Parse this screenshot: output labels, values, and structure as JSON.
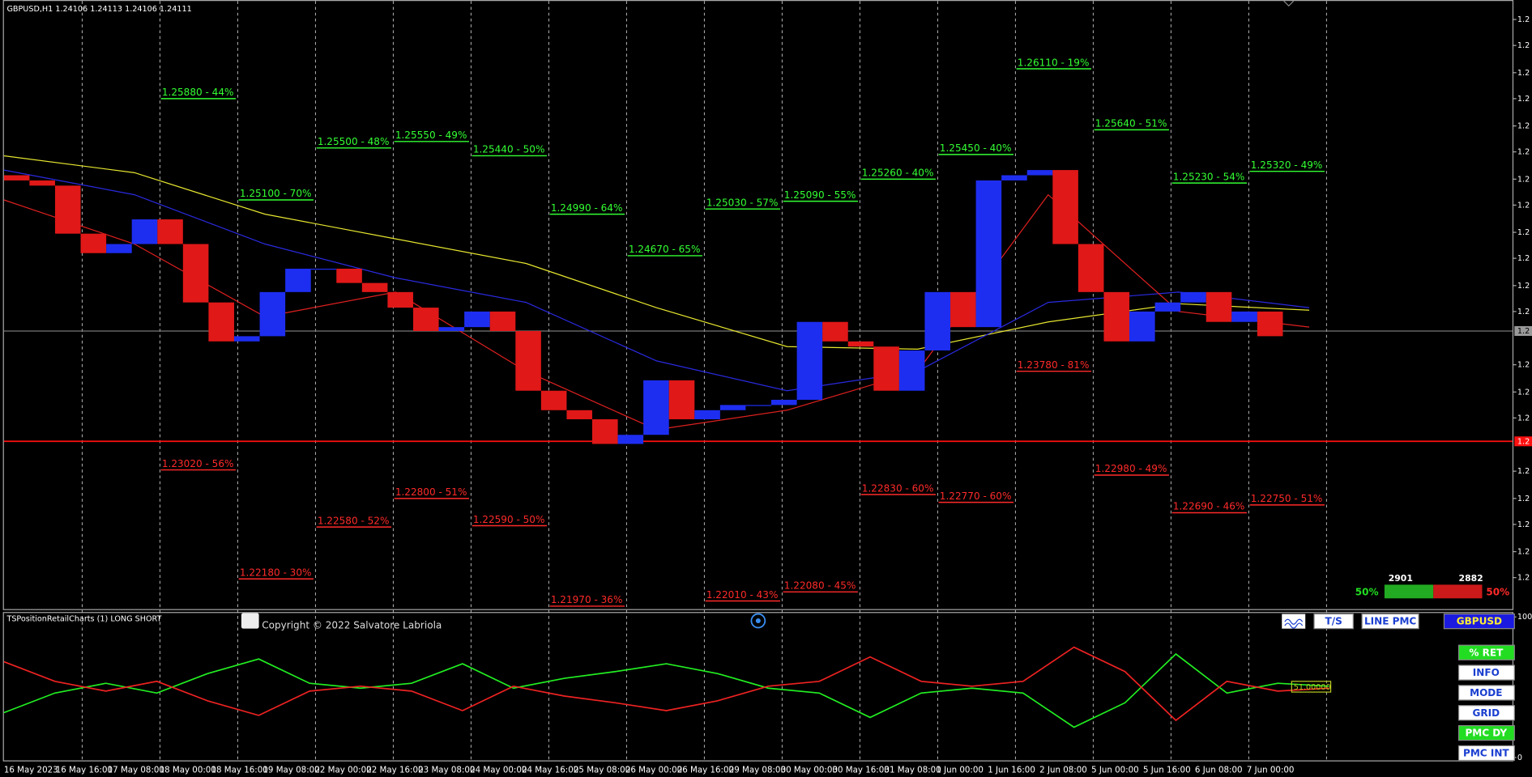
{
  "header": "GBPUSD,H1  1.24106 1.24113 1.24106 1.24111",
  "price_axis": {
    "ylim": [
      1.2194,
      1.2664
    ],
    "ticks": [
      {
        "value": 1.2649,
        "label": "1.2"
      },
      {
        "value": 1.2629,
        "label": "1.2"
      },
      {
        "value": 1.2608,
        "label": "1.2"
      },
      {
        "value": 1.2588,
        "label": "1.2"
      },
      {
        "value": 1.2567,
        "label": "1.2"
      },
      {
        "value": 1.2547,
        "label": "1.2"
      },
      {
        "value": 1.2526,
        "label": "1.2"
      },
      {
        "value": 1.2506,
        "label": "1.2"
      },
      {
        "value": 1.2485,
        "label": "1.2"
      },
      {
        "value": 1.2465,
        "label": "1.2"
      },
      {
        "value": 1.2444,
        "label": "1.2"
      },
      {
        "value": 1.2424,
        "label": "1.2"
      },
      {
        "value": 1.2383,
        "label": "1.2"
      },
      {
        "value": 1.2362,
        "label": "1.2"
      },
      {
        "value": 1.2342,
        "label": "1.2"
      },
      {
        "value": 1.2301,
        "label": "1.2"
      },
      {
        "value": 1.228,
        "label": "1.2"
      },
      {
        "value": 1.226,
        "label": "1.2"
      },
      {
        "value": 1.2239,
        "label": "1.2"
      },
      {
        "value": 1.2219,
        "label": "1.2"
      }
    ]
  },
  "price": [
    1.2529,
    1.2525,
    1.2521,
    1.2484,
    1.2469,
    1.2476,
    1.2495,
    1.2476,
    1.2431,
    1.2401,
    1.2405,
    1.2439,
    1.2457,
    1.2457,
    1.2446,
    1.2439,
    1.2427,
    1.2409,
    1.2412,
    1.2424,
    1.2409,
    1.2363,
    1.2348,
    1.2341,
    1.2322,
    1.2329,
    1.2371,
    1.2341,
    1.2348,
    1.2352,
    1.2352,
    1.2356,
    1.2416,
    1.2401,
    1.2397,
    1.2363,
    1.2394,
    1.2439,
    1.2412,
    1.2525,
    1.2529,
    1.2533,
    1.2476,
    1.2439,
    1.2401,
    1.2424,
    1.2431,
    1.2439,
    1.2416,
    1.2424,
    1.2405
  ],
  "moving_averages": [
    {
      "color": "#e6e630",
      "values": [
        1.2544,
        1.2531,
        1.2499,
        1.248,
        1.2461,
        1.2427,
        1.2397,
        1.2395,
        1.2416,
        1.243,
        1.2425
      ]
    },
    {
      "color": "#2a2ae0",
      "values": [
        1.2533,
        1.2514,
        1.2476,
        1.245,
        1.2431,
        1.2386,
        1.2363,
        1.2378,
        1.2431,
        1.2439,
        1.2427
      ]
    },
    {
      "color": "#e02020",
      "values": [
        1.251,
        1.2476,
        1.242,
        1.2439,
        1.2378,
        1.2333,
        1.2348,
        1.2378,
        1.2514,
        1.2424,
        1.2412
      ]
    }
  ],
  "bid_line": {
    "value": 1.2409,
    "label": "1.2"
  },
  "red_line": {
    "value": 1.2324,
    "label": "1.2"
  },
  "long_levels": [
    {
      "value": 1.2588,
      "label": "1.25880 - 44%"
    },
    {
      "value": 1.251,
      "label": "1.25100 - 70%"
    },
    {
      "value": 1.255,
      "label": "1.25500 - 48%"
    },
    {
      "value": 1.2555,
      "label": "1.25550 - 49%"
    },
    {
      "value": 1.2544,
      "label": "1.25440 - 50%"
    },
    {
      "value": 1.2499,
      "label": "1.24990 - 64%"
    },
    {
      "value": 1.2467,
      "label": "1.24670 - 65%"
    },
    {
      "value": 1.2503,
      "label": "1.25030 - 57%"
    },
    {
      "value": 1.2509,
      "label": "1.25090 - 55%"
    },
    {
      "value": 1.2526,
      "label": "1.25260 - 40%"
    },
    {
      "value": 1.2545,
      "label": "1.25450 - 40%"
    },
    {
      "value": 1.2611,
      "label": "1.26110 - 19%"
    },
    {
      "value": 1.2564,
      "label": "1.25640 - 51%"
    },
    {
      "value": 1.2523,
      "label": "1.25230 - 54%"
    },
    {
      "value": 1.2532,
      "label": "1.25320 - 49%"
    }
  ],
  "short_levels": [
    {
      "value": 1.2302,
      "label": "1.23020 - 56%"
    },
    {
      "value": 1.2218,
      "label": "1.22180 - 30%"
    },
    {
      "value": 1.2258,
      "label": "1.22580 - 52%"
    },
    {
      "value": 1.228,
      "label": "1.22800 - 51%"
    },
    {
      "value": 1.2259,
      "label": "1.22590 - 50%"
    },
    {
      "value": 1.2197,
      "label": "1.21970 - 36%"
    },
    null,
    {
      "value": 1.2201,
      "label": "1.22010 - 43%"
    },
    {
      "value": 1.2208,
      "label": "1.22080 - 45%"
    },
    {
      "value": 1.2283,
      "label": "1.22830 - 60%"
    },
    {
      "value": 1.2277,
      "label": "1.22770 - 60%"
    },
    {
      "value": 1.2378,
      "label": "1.23780 - 81%"
    },
    {
      "value": 1.2298,
      "label": "1.22980 - 49%"
    },
    {
      "value": 1.2269,
      "label": "1.22690 - 46%"
    },
    {
      "value": 1.2275,
      "label": "1.22750 - 51%"
    }
  ],
  "time_labels": [
    "16 May 2023",
    "16 May 16:00",
    "17 May 08:00",
    "18 May 00:00",
    "18 May 16:00",
    "19 May 08:00",
    "22 May 00:00",
    "22 May 16:00",
    "23 May 08:00",
    "24 May 00:00",
    "24 May 16:00",
    "25 May 08:00",
    "26 May 00:00",
    "26 May 16:00",
    "29 May 08:00",
    "30 May 00:00",
    "30 May 16:00",
    "31 May 08:00",
    "1 Jun 00:00",
    "1 Jun 16:00",
    "2 Jun 08:00",
    "5 Jun 00:00",
    "5 Jun 16:00",
    "6 Jun 08:00",
    "7 Jun 00:00"
  ],
  "stats": {
    "long": {
      "count": 2901,
      "percent": 50,
      "percent_label": "50%"
    },
    "short": {
      "count": 2882,
      "percent": 50,
      "percent_label": "50%"
    }
  },
  "indicator": {
    "title": "TSPositionRetailCharts (1) LONG SHORT",
    "copyright": "Copyright © 2022 Salvatore Labriola",
    "ylim": [
      0,
      100
    ],
    "ticks": [
      100,
      0
    ],
    "long": [
      31.9,
      45.8,
      52.8,
      45.8,
      59.7,
      70.1,
      52.8,
      49.3,
      52.8,
      66.7,
      49.3,
      56.3,
      61.1,
      66.7,
      59.7,
      49.3,
      45.8,
      28.5,
      45.8,
      49.3,
      45.8,
      21.5,
      38.9,
      73.6,
      45.8,
      52.8,
      50.7
    ],
    "short": [
      68.1,
      54.2,
      47.2,
      54.2,
      40.3,
      29.9,
      47.2,
      50.7,
      47.2,
      33.3,
      50.7,
      43.7,
      38.9,
      33.3,
      40.3,
      50.7,
      54.2,
      71.5,
      54.2,
      50.7,
      54.2,
      78.5,
      61.1,
      26.4,
      54.2,
      47.2,
      49.3
    ],
    "value_box": "51.00000"
  },
  "buttons_top": [
    "T/S",
    "LINE PMC",
    "GBPUSD"
  ],
  "buttons_side": [
    {
      "label": "% RET",
      "active": true
    },
    {
      "label": "INFO",
      "active": false
    },
    {
      "label": "MODE",
      "active": false
    },
    {
      "label": "GRID",
      "active": false
    },
    {
      "label": "PMC DY",
      "active": true
    },
    {
      "label": "PMC INT",
      "active": false
    }
  ]
}
